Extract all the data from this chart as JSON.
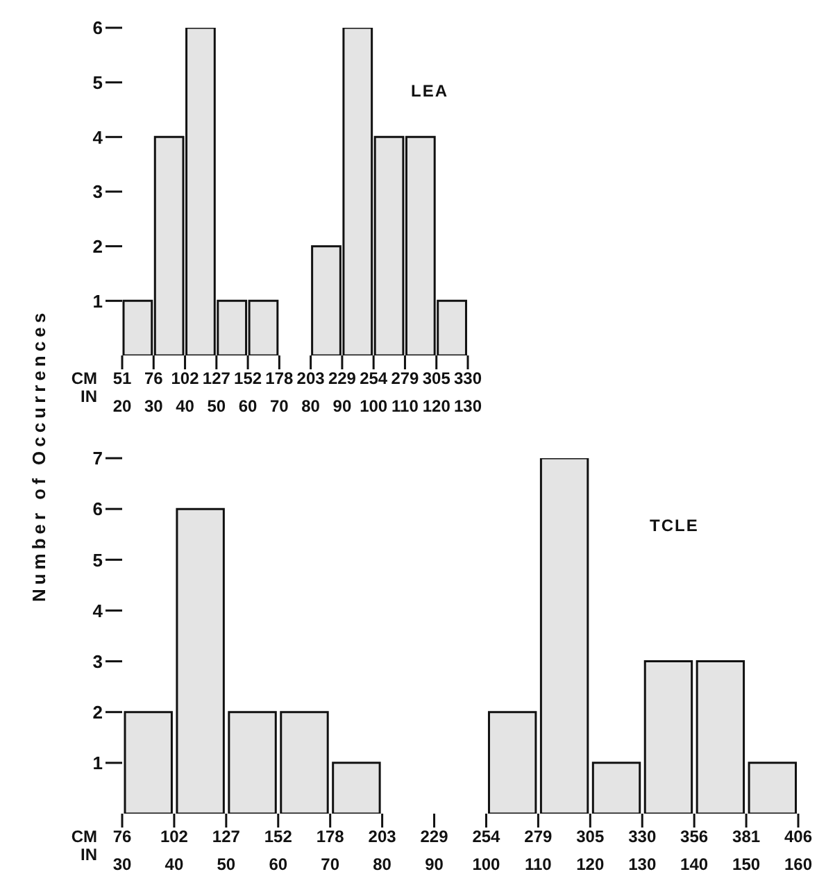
{
  "chart_data": [
    {
      "type": "histogram",
      "title": "LEA",
      "ylabel": "Number of Occurrences",
      "xlabel": "IN",
      "x2label": "CM",
      "color": "#e4e4e4",
      "bins": [
        20,
        30,
        40,
        50,
        60,
        70,
        80,
        90,
        100,
        110,
        120,
        130
      ],
      "values": [
        1,
        4,
        6,
        1,
        1,
        0,
        2,
        6,
        4,
        4,
        1
      ],
      "xlim": [
        20,
        130
      ],
      "xticks": [
        20,
        30,
        40,
        50,
        60,
        70,
        80,
        90,
        100,
        110,
        120,
        130
      ],
      "x2lim": [
        50.8,
        330.2
      ],
      "x2ticks": [
        {
          "value": 50.8,
          "label": "51"
        },
        {
          "value": 76.2,
          "label": "76"
        },
        {
          "value": 101.6,
          "label": "102"
        },
        {
          "value": 127,
          "label": "127"
        },
        {
          "value": 152.4,
          "label": "152"
        },
        {
          "value": 177.8,
          "label": "178"
        },
        {
          "value": 203.2,
          "label": "203"
        },
        {
          "value": 228.6,
          "label": "229"
        },
        {
          "value": 254,
          "label": "254"
        },
        {
          "value": 279.4,
          "label": "279"
        },
        {
          "value": 304.8,
          "label": "305"
        },
        {
          "value": 330.2,
          "label": "330"
        }
      ],
      "ylim": [
        0,
        6
      ],
      "yticks": [
        1,
        2,
        3,
        4,
        5,
        6
      ]
    },
    {
      "type": "histogram",
      "title": "TCLE",
      "xlabel": "IN",
      "x2label": "CM",
      "color": "#e4e4e4",
      "bins": [
        30,
        40,
        50,
        60,
        70,
        80,
        90,
        100,
        110,
        120,
        130,
        140,
        150,
        160
      ],
      "values": [
        2,
        6,
        2,
        2,
        1,
        0,
        0,
        2,
        7,
        1,
        3,
        3,
        1
      ],
      "xlim": [
        30,
        160
      ],
      "xticks": [
        30,
        40,
        50,
        60,
        70,
        80,
        90,
        100,
        110,
        120,
        130,
        140,
        150,
        160
      ],
      "x2lim": [
        76.2,
        406.4
      ],
      "x2ticks": [
        {
          "value": 76.2,
          "label": "76"
        },
        {
          "value": 101.6,
          "label": "102"
        },
        {
          "value": 127,
          "label": "127"
        },
        {
          "value": 152.4,
          "label": "152"
        },
        {
          "value": 177.8,
          "label": "178"
        },
        {
          "value": 203.2,
          "label": "203"
        },
        {
          "value": 228.6,
          "label": "229"
        },
        {
          "value": 254,
          "label": "254"
        },
        {
          "value": 279.4,
          "label": "279"
        },
        {
          "value": 304.8,
          "label": "305"
        },
        {
          "value": 330.2,
          "label": "330"
        },
        {
          "value": 355.6,
          "label": "356"
        },
        {
          "value": 381,
          "label": "381"
        },
        {
          "value": 406.4,
          "label": "406"
        }
      ],
      "ylim": [
        0,
        7
      ],
      "yticks": [
        1,
        2,
        3,
        4,
        5,
        6,
        7
      ]
    }
  ]
}
